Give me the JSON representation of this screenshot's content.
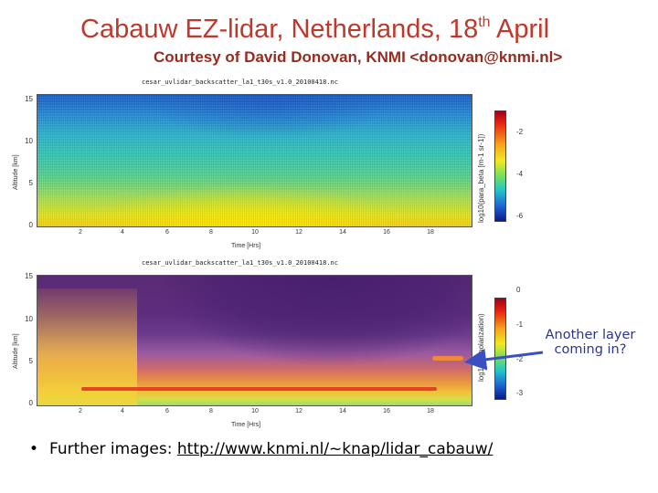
{
  "slide": {
    "title": "Cabauw EZ-lidar, Netherlands, 18",
    "title_sup": "th",
    "title_end": " April",
    "subtitle": "Courtesy of David Donovan, KNMI <donovan@knmi.nl>"
  },
  "plot_top": {
    "file_title": "cesar_uvlidar_backscatter_la1_t30s_v1.0_20100418.nc",
    "ylabel": "Altitude [km]",
    "xlabel": "Time [Hrs]",
    "yticks": [
      "15",
      "10",
      "5",
      "0"
    ],
    "xticks": [
      "2",
      "4",
      "6",
      "8",
      "10",
      "12",
      "14",
      "16",
      "18"
    ],
    "colorbar_label": "log10(para_beta [m-1 sr-1])",
    "colorbar_ticks": [
      "-2",
      "-4",
      "-6"
    ]
  },
  "plot_bottom": {
    "file_title": "cesar_uvlidar_backscatter_la1_t30s_v1.0_20100418.nc",
    "ylabel": "Altitude [km]",
    "xlabel": "Time [Hrs]",
    "yticks": [
      "15",
      "10",
      "5",
      "0"
    ],
    "xticks": [
      "2",
      "4",
      "6",
      "8",
      "10",
      "12",
      "14",
      "16",
      "18"
    ],
    "colorbar_label": "log10(depolarization)",
    "colorbar_ticks": [
      "0",
      "-1",
      "-2",
      "-3"
    ]
  },
  "annotation": {
    "text_line1": "Another layer",
    "text_line2": "coming in?",
    "color": "#2a3592"
  },
  "bullet": {
    "prefix": "Further images:",
    "link": "http://www.knmi.nl/~knap/lidar_cabauw/"
  },
  "colors": {
    "title": "#c0382b",
    "subtitle": "#9a2a1f"
  }
}
